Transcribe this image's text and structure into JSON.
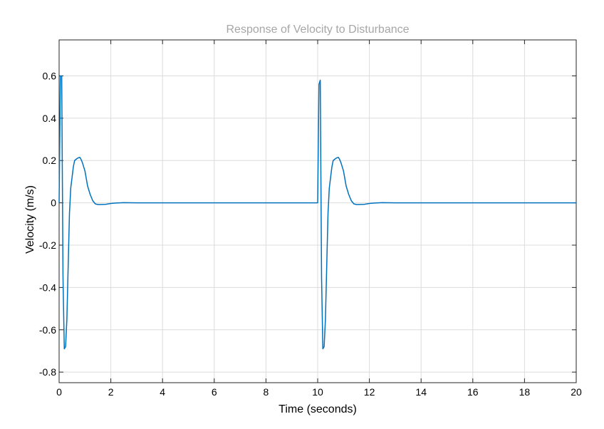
{
  "chart_data": {
    "type": "line",
    "title": "Response of Velocity to Disturbance",
    "xlabel": "Time (seconds)",
    "ylabel": "Velocity (m/s)",
    "xlim": [
      0,
      20
    ],
    "ylim": [
      -0.85,
      0.77
    ],
    "grid": true,
    "xticks": [
      0,
      2,
      4,
      6,
      8,
      10,
      12,
      14,
      16,
      18,
      20
    ],
    "yticks": [
      -0.8,
      -0.6,
      -0.4,
      -0.2,
      0,
      0.2,
      0.4,
      0.6
    ],
    "xtick_labels": [
      "0",
      "2",
      "4",
      "6",
      "8",
      "10",
      "12",
      "14",
      "16",
      "18",
      "20"
    ],
    "ytick_labels": [
      "-0.8",
      "-0.6",
      "-0.4",
      "-0.2",
      "0",
      "0.2",
      "0.4",
      "0.6"
    ],
    "colors": {
      "line": "#0072bd",
      "grid": "#dcdcdc",
      "axes": "#262626",
      "title": "#a6a6a6"
    },
    "series": [
      {
        "x": [
          0,
          0.05,
          0.1,
          0.15,
          0.2,
          0.25,
          0.3,
          0.35,
          0.4,
          0.45,
          0.5,
          0.55,
          0.6,
          0.65,
          0.7,
          0.75,
          0.8,
          0.85,
          0.9,
          1.0,
          1.1,
          1.2,
          1.3,
          1.4,
          1.5,
          1.6,
          1.8,
          2.0,
          2.2,
          2.5,
          3.0,
          4.0,
          6.0,
          8.0,
          10.0,
          10.05,
          10.1,
          10.15,
          10.2,
          10.25,
          10.3,
          10.35,
          10.4,
          10.45,
          10.5,
          10.55,
          10.6,
          10.65,
          10.7,
          10.75,
          10.8,
          10.85,
          10.9,
          11.0,
          11.1,
          11.2,
          11.3,
          11.4,
          11.5,
          11.6,
          11.8,
          12.0,
          12.2,
          12.5,
          13.0,
          14.0,
          16.0,
          18.0,
          20.0
        ],
        "y": [
          0.0,
          0.6,
          0.6,
          -0.35,
          -0.69,
          -0.68,
          -0.55,
          -0.3,
          -0.05,
          0.07,
          0.12,
          0.17,
          0.2,
          0.205,
          0.21,
          0.213,
          0.215,
          0.205,
          0.19,
          0.15,
          0.08,
          0.04,
          0.01,
          -0.005,
          -0.008,
          -0.008,
          -0.007,
          -0.003,
          -0.001,
          0.001,
          0.0,
          0.0,
          0.0,
          0.0,
          0.0,
          0.56,
          0.58,
          -0.35,
          -0.69,
          -0.68,
          -0.55,
          -0.3,
          -0.05,
          0.07,
          0.12,
          0.17,
          0.2,
          0.205,
          0.21,
          0.213,
          0.215,
          0.205,
          0.19,
          0.15,
          0.08,
          0.04,
          0.01,
          -0.005,
          -0.008,
          -0.008,
          -0.007,
          -0.003,
          -0.001,
          0.001,
          0.0,
          0.0,
          0.0,
          0.0,
          0.0
        ]
      }
    ]
  }
}
